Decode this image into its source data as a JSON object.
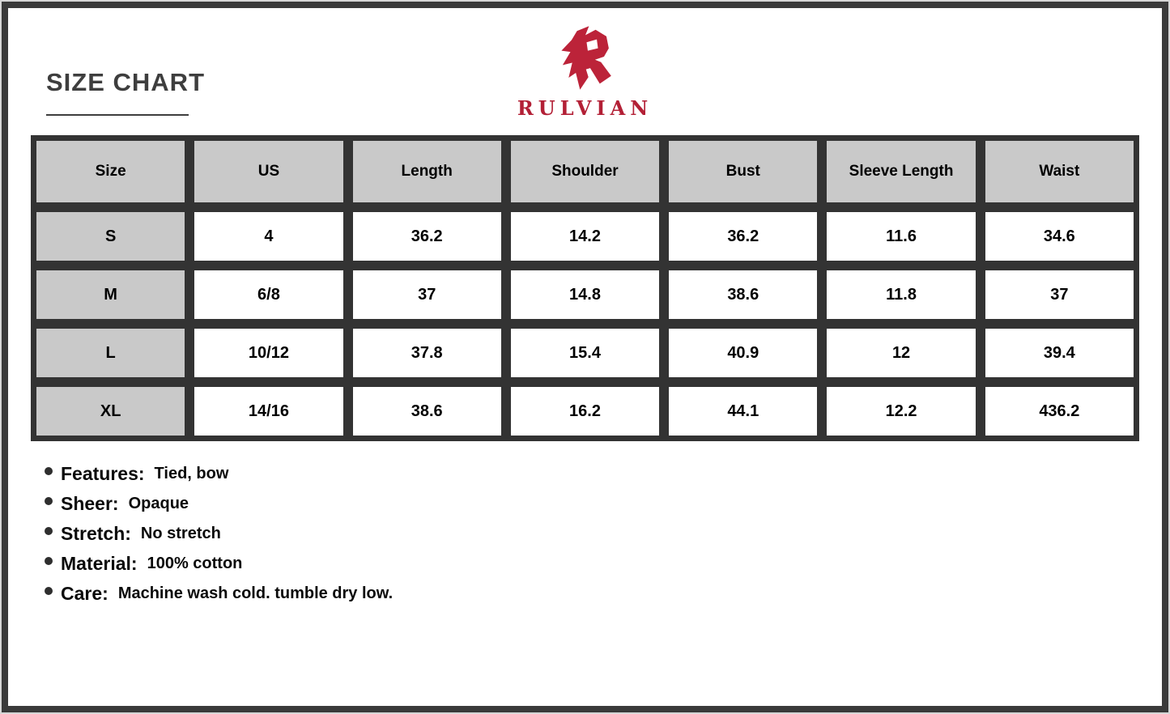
{
  "header": {
    "title": "SIZE CHART"
  },
  "brand": {
    "name": "RULVIAN",
    "emblem_icon": "rulvian-angular-r-emblem",
    "accent_color": "#b32036"
  },
  "table": {
    "columns": [
      "Size",
      "US",
      "Length",
      "Shoulder",
      "Bust",
      "Sleeve Length",
      "Waist"
    ],
    "rows": [
      [
        "S",
        "4",
        "36.2",
        "14.2",
        "36.2",
        "11.6",
        "34.6"
      ],
      [
        "M",
        "6/8",
        "37",
        "14.8",
        "38.6",
        "11.8",
        "37"
      ],
      [
        "L",
        "10/12",
        "37.8",
        "15.4",
        "40.9",
        "12",
        "39.4"
      ],
      [
        "XL",
        "14/16",
        "38.6",
        "16.2",
        "44.1",
        "12.2",
        "436.2"
      ]
    ]
  },
  "details": [
    {
      "label": "Features:",
      "value": "Tied, bow"
    },
    {
      "label": "Sheer:",
      "value": "Opaque"
    },
    {
      "label": "Stretch:",
      "value": "No stretch"
    },
    {
      "label": "Material:",
      "value": "100% cotton"
    },
    {
      "label": "Care:",
      "value": "Machine wash cold. tumble dry low."
    }
  ],
  "colors": {
    "frame": "#3a3a3a",
    "table_grid": "#333333",
    "shaded_cell": "#c9c9c9",
    "title_text": "#3e3e3e",
    "logo_red": "#b32036"
  }
}
